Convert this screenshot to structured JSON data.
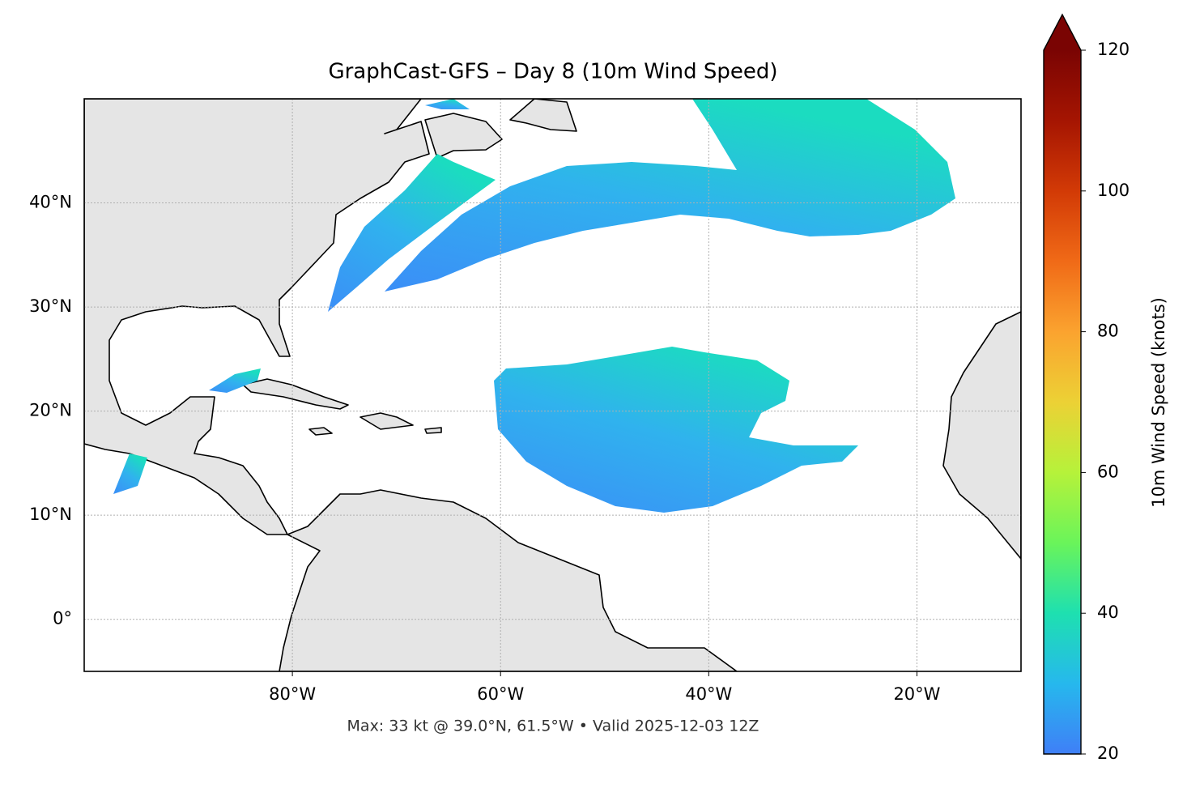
{
  "chart_data": {
    "type": "map",
    "title": "GraphCast-GFS – Day 8 (10m Wind Speed)",
    "caption": "Max: 33 kt @ 39.0°N, 61.5°W • Valid 2025-12-03 12Z",
    "xlim": [
      -100,
      -10
    ],
    "ylim": [
      -5,
      50
    ],
    "xticks": [
      {
        "value": -80,
        "label": "80°W"
      },
      {
        "value": -60,
        "label": "60°W"
      },
      {
        "value": -40,
        "label": "40°W"
      },
      {
        "value": -20,
        "label": "20°W"
      }
    ],
    "yticks": [
      {
        "value": 0,
        "label": "0°"
      },
      {
        "value": 10,
        "label": "10°N"
      },
      {
        "value": 20,
        "label": "20°N"
      },
      {
        "value": 30,
        "label": "30°N"
      },
      {
        "value": 40,
        "label": "40°N"
      }
    ],
    "grid": true,
    "colorbar": {
      "label": "10m Wind Speed (knots)",
      "lim": [
        20,
        120
      ],
      "ticks": [
        20,
        40,
        60,
        80,
        100,
        120
      ],
      "colors": [
        "#3f7ff7",
        "#26b8ed",
        "#1ee0b0",
        "#6af45a",
        "#b6f23a",
        "#ecd135",
        "#fba32f",
        "#f06a17",
        "#d23a06",
        "#a51502",
        "#7a0403"
      ]
    }
  }
}
